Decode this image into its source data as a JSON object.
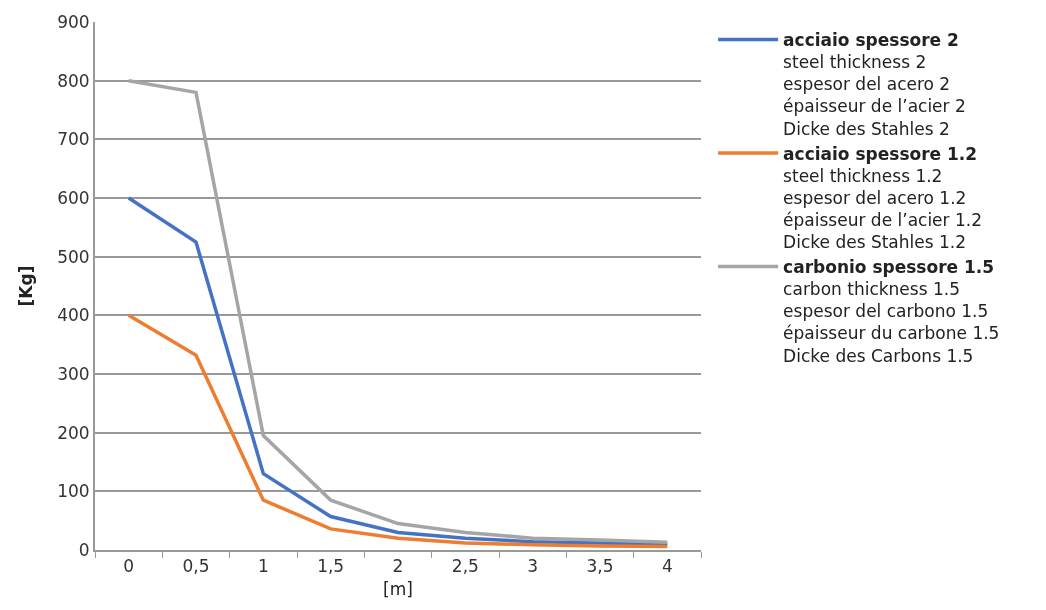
{
  "chart_data": {
    "type": "line",
    "xlabel": "[m]",
    "ylabel": "[Kg]",
    "categories": [
      "0",
      "0,5",
      "1",
      "1,5",
      "2",
      "2,5",
      "3",
      "3,5",
      "4"
    ],
    "ylim": [
      0,
      900
    ],
    "yticks": [
      0,
      100,
      200,
      300,
      400,
      500,
      600,
      700,
      800,
      900
    ],
    "grid": "y",
    "legend": "right",
    "marker": "none",
    "line_style": "solid",
    "series": [
      {
        "name": "acciaio spessore 2\nsteel thickness 2\nespesor del acero 2\népaisseur de l’acier 2\nDicke des Stahles 2",
        "color": "#4472c4",
        "values": [
          600,
          525,
          130,
          57,
          30,
          20,
          14,
          12,
          10
        ]
      },
      {
        "name": "acciaio spessore 1.2\nsteel thickness 1.2\nespesor del acero 1.2\népaisseur de l’acier 1.2\nDicke des Stahles 1.2",
        "color": "#ed7d31",
        "values": [
          400,
          332,
          85,
          36,
          20,
          12,
          9,
          7,
          6
        ]
      },
      {
        "name": "carbonio spessore 1.5\ncarbon thickness 1.5\nespesor del carbono 1.5\népaisseur du carbone 1.5\nDicke des Carbons 1.5",
        "color": "#a5a5a5",
        "values": [
          800,
          780,
          195,
          85,
          45,
          30,
          20,
          17,
          13
        ]
      }
    ]
  }
}
